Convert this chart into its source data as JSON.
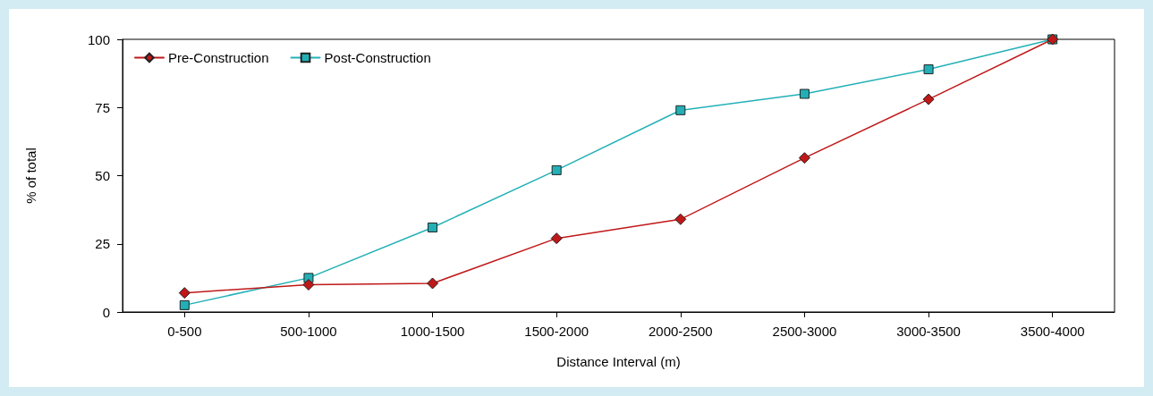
{
  "chart_data": {
    "type": "line",
    "xlabel": "Distance Interval (m)",
    "ylabel": "% of total",
    "categories": [
      "0-500",
      "500-1000",
      "1000-1500",
      "1500-2000",
      "2000-2500",
      "2500-3000",
      "3000-3500",
      "3500-4000"
    ],
    "series": [
      {
        "name": "Pre-Construction",
        "color": "#c01818",
        "marker": "diamond",
        "values": [
          7,
          10,
          10.5,
          27,
          34,
          56.5,
          78,
          100
        ]
      },
      {
        "name": "Post-Construction",
        "color": "#22b0b6",
        "marker": "square",
        "values": [
          2.5,
          12.5,
          31,
          52,
          74,
          80,
          89,
          100
        ]
      }
    ],
    "ylim": [
      0,
      100
    ],
    "yticks": [
      0,
      25,
      50,
      75,
      100
    ],
    "grid": false,
    "legend": "top left",
    "line_style": "solid"
  }
}
